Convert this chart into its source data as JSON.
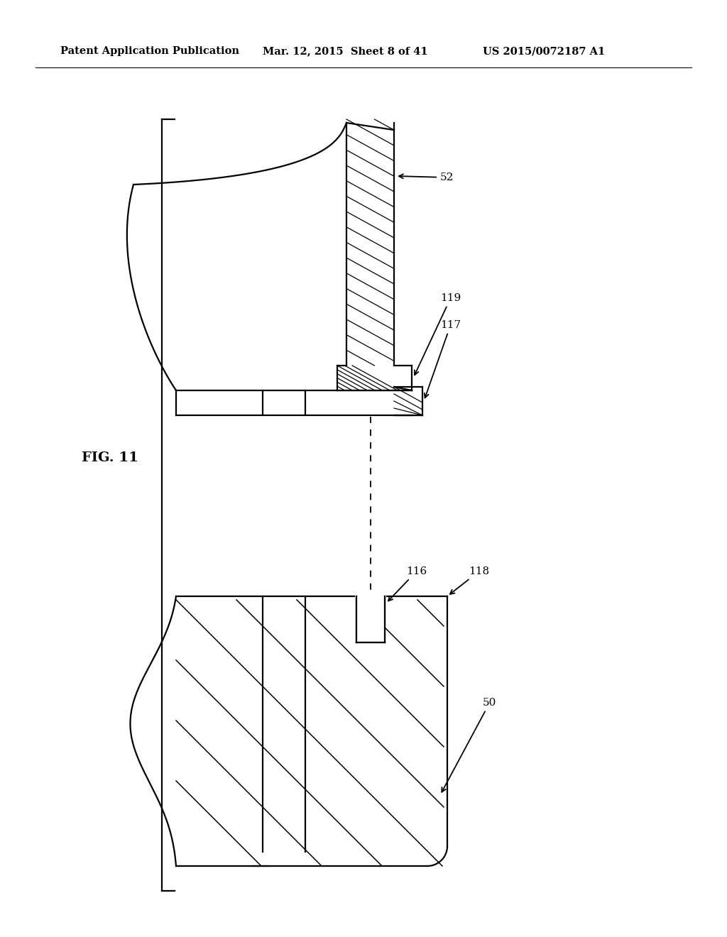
{
  "background_color": "#ffffff",
  "line_color": "#000000",
  "header_left": "Patent Application Publication",
  "header_mid": "Mar. 12, 2015  Sheet 8 of 41",
  "header_right": "US 2015/0072187 A1",
  "header_fontsize": 10.5,
  "fig_label": "FIG. 11",
  "label_fontsize": 11
}
